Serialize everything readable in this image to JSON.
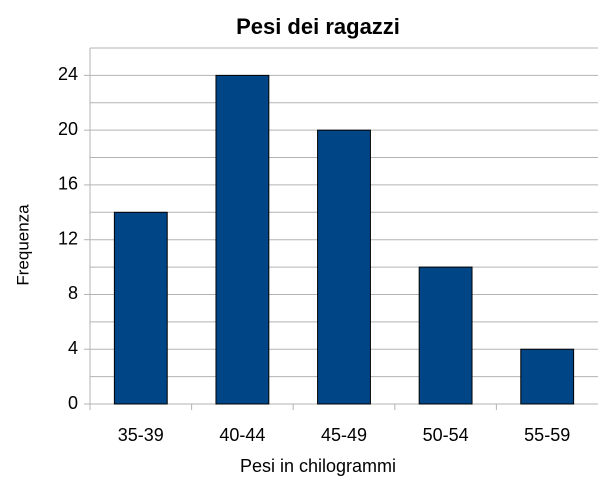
{
  "chart_data": {
    "type": "bar",
    "title": "Pesi dei ragazzi",
    "xlabel": "Pesi in chilogrammi",
    "ylabel": "Frequenza",
    "categories": [
      "35-39",
      "40-44",
      "45-49",
      "50-54",
      "55-59"
    ],
    "values": [
      14,
      24,
      20,
      10,
      4
    ],
    "color": "#004586",
    "ylim": [
      0,
      26
    ],
    "yticks": [
      0,
      4,
      8,
      12,
      16,
      20,
      24
    ],
    "yminorticks": [
      2,
      6,
      10,
      14,
      18,
      22,
      26
    ],
    "grid": true
  }
}
